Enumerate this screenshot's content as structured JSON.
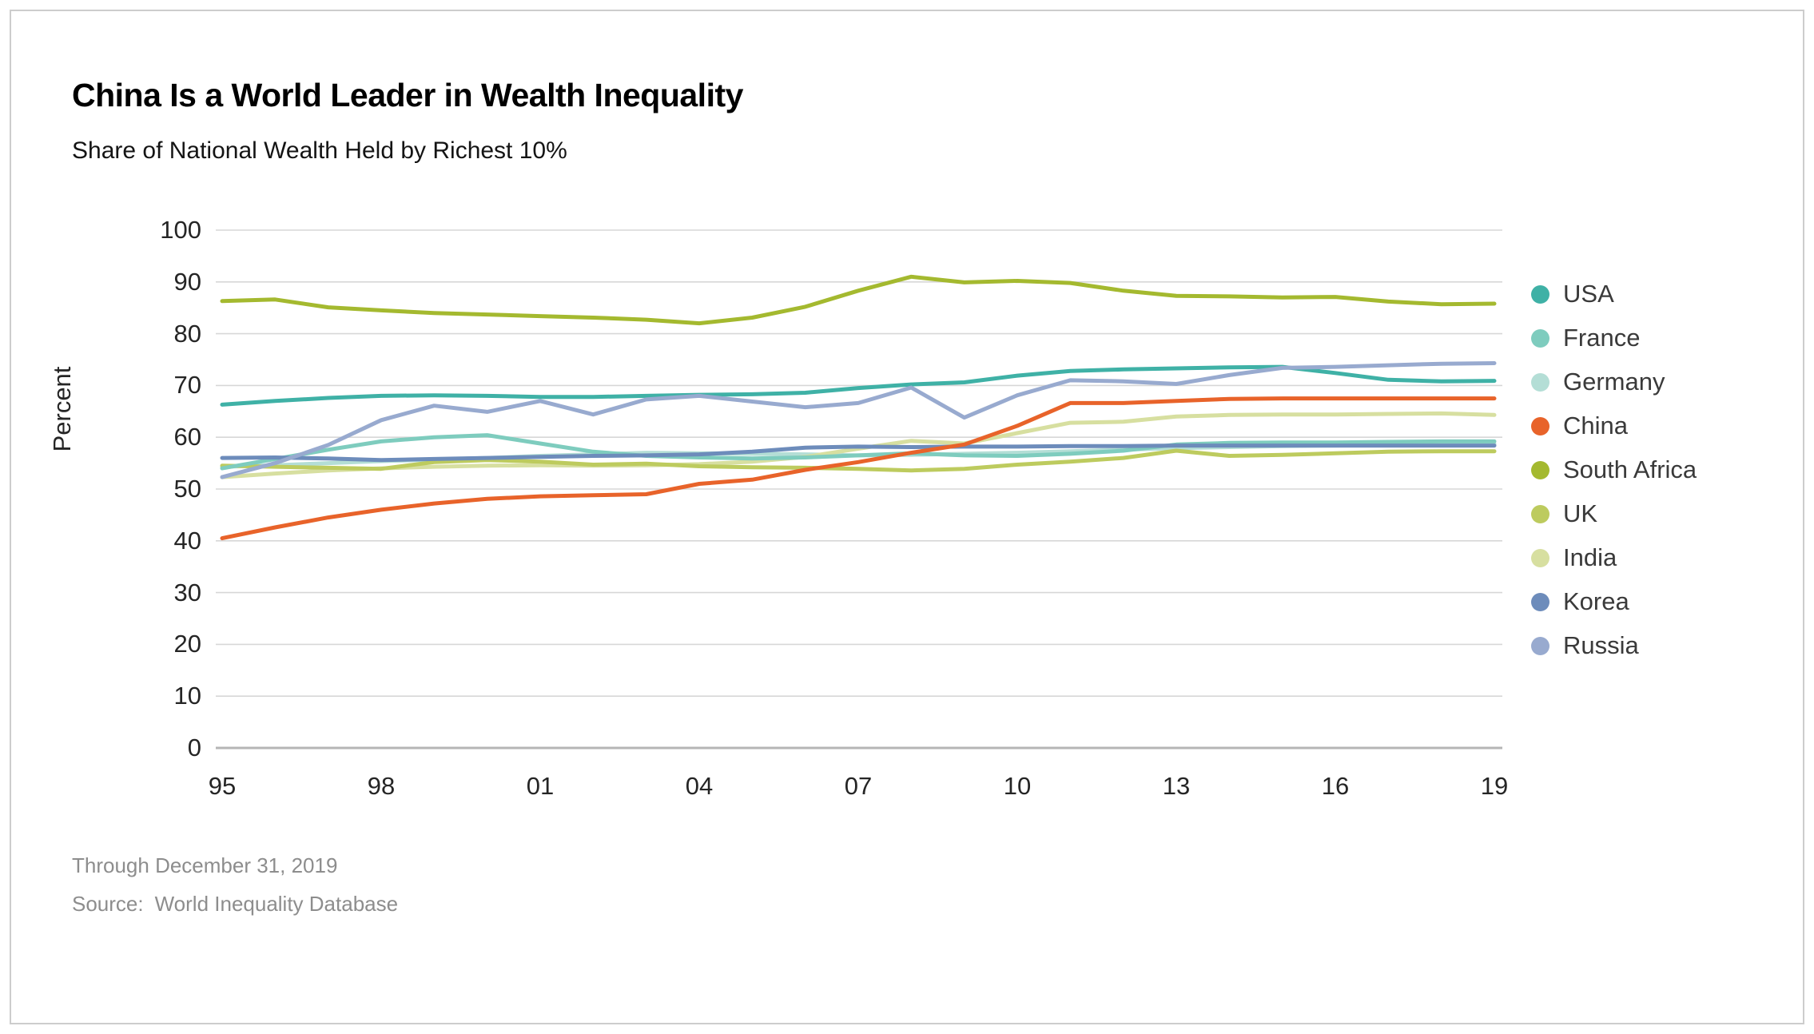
{
  "header": {
    "title": "China Is a World Leader in Wealth Inequality",
    "subtitle": "Share of National Wealth Held by Richest 10%"
  },
  "footer": {
    "note": "Through December 31, 2019",
    "source_label": "Source:",
    "source": "World Inequality Database"
  },
  "style": {
    "grid_color": "#d7d7d7",
    "zero_line_color": "#b5b5b5",
    "line_width": 5
  },
  "chart_data": {
    "type": "line",
    "title": "China Is a World Leader in Wealth Inequality",
    "subtitle": "Share of National Wealth Held by Richest 10%",
    "xlabel": "",
    "ylabel": "Percent",
    "ylim": [
      0,
      100
    ],
    "y_ticks": [
      0,
      10,
      20,
      30,
      40,
      50,
      60,
      70,
      80,
      90,
      100
    ],
    "grid": "horizontal",
    "legend_position": "right",
    "x": [
      1995,
      1996,
      1997,
      1998,
      1999,
      2000,
      2001,
      2002,
      2003,
      2004,
      2005,
      2006,
      2007,
      2008,
      2009,
      2010,
      2011,
      2012,
      2013,
      2014,
      2015,
      2016,
      2017,
      2018,
      2019
    ],
    "x_tick_years": [
      1995,
      1998,
      2001,
      2004,
      2007,
      2010,
      2013,
      2016,
      2019
    ],
    "x_tick_labels": [
      "95",
      "98",
      "01",
      "04",
      "07",
      "10",
      "13",
      "16",
      "19"
    ],
    "series": [
      {
        "name": "USA",
        "color": "#3fb1a6",
        "values": [
          66.3,
          67.0,
          67.6,
          68.0,
          68.1,
          68.0,
          67.8,
          67.8,
          68.0,
          68.2,
          68.3,
          68.6,
          69.5,
          70.2,
          70.6,
          71.9,
          72.8,
          73.1,
          73.3,
          73.5,
          73.6,
          72.4,
          71.1,
          70.8,
          70.9
        ]
      },
      {
        "name": "France",
        "color": "#7eccbe",
        "values": [
          54.0,
          55.8,
          57.6,
          59.2,
          60.0,
          60.4,
          58.8,
          57.2,
          56.4,
          56.1,
          55.9,
          56.1,
          56.5,
          56.9,
          56.5,
          56.4,
          56.8,
          57.4,
          58.6,
          58.9,
          59.0,
          59.0,
          59.1,
          59.2,
          59.2
        ]
      },
      {
        "name": "Germany",
        "color": "#b4ded6",
        "values": [
          54.3,
          54.6,
          55.0,
          55.4,
          55.7,
          56.0,
          56.4,
          56.7,
          57.0,
          56.9,
          56.8,
          56.7,
          56.5,
          56.6,
          56.8,
          57.0,
          57.3,
          57.6,
          57.9,
          58.1,
          58.3,
          58.4,
          58.5,
          58.6,
          58.7
        ]
      },
      {
        "name": "China",
        "color": "#e8632a",
        "values": [
          40.5,
          42.6,
          44.5,
          46.0,
          47.2,
          48.1,
          48.6,
          48.8,
          49.0,
          51.0,
          51.8,
          53.7,
          55.2,
          57.0,
          58.6,
          62.2,
          66.6,
          66.6,
          67.0,
          67.4,
          67.5,
          67.5,
          67.5,
          67.5,
          67.5
        ]
      },
      {
        "name": "South Africa",
        "color": "#a4b92f",
        "values": [
          86.3,
          86.6,
          85.1,
          84.5,
          84.0,
          83.7,
          83.4,
          83.1,
          82.7,
          82.0,
          83.1,
          85.2,
          88.3,
          91.0,
          89.9,
          90.2,
          89.8,
          88.3,
          87.3,
          87.2,
          87.0,
          87.1,
          86.2,
          85.7,
          85.8
        ]
      },
      {
        "name": "UK",
        "color": "#bdcb5e",
        "values": [
          54.5,
          54.3,
          54.1,
          53.9,
          55.2,
          55.6,
          55.3,
          54.7,
          54.9,
          54.4,
          54.2,
          54.1,
          53.9,
          53.6,
          53.9,
          54.7,
          55.3,
          56.0,
          57.4,
          56.4,
          56.6,
          56.9,
          57.2,
          57.3,
          57.3
        ]
      },
      {
        "name": "India",
        "color": "#d7dfa0",
        "values": [
          52.3,
          53.0,
          53.6,
          54.0,
          54.3,
          54.5,
          54.6,
          54.5,
          54.6,
          54.8,
          55.3,
          56.2,
          57.8,
          59.3,
          58.8,
          60.8,
          62.8,
          63.0,
          64.0,
          64.3,
          64.4,
          64.4,
          64.5,
          64.6,
          64.3
        ]
      },
      {
        "name": "Korea",
        "color": "#6d8cbb",
        "values": [
          56.0,
          56.1,
          55.9,
          55.6,
          55.8,
          56.0,
          56.2,
          56.4,
          56.5,
          56.7,
          57.2,
          58.0,
          58.2,
          58.1,
          58.2,
          58.2,
          58.3,
          58.3,
          58.4,
          58.4,
          58.4,
          58.4,
          58.4,
          58.4,
          58.4
        ]
      },
      {
        "name": "Russia",
        "color": "#98aacf",
        "values": [
          52.3,
          55.0,
          58.5,
          63.3,
          66.1,
          64.9,
          67.0,
          64.4,
          67.3,
          68.0,
          66.9,
          65.8,
          66.6,
          69.6,
          63.8,
          68.1,
          71.0,
          70.8,
          70.3,
          72.0,
          73.4,
          73.6,
          73.9,
          74.2,
          74.3
        ]
      }
    ],
    "draw_order": [
      "Germany",
      "India",
      "UK",
      "France",
      "Korea",
      "USA",
      "Russia",
      "South Africa",
      "China"
    ]
  }
}
